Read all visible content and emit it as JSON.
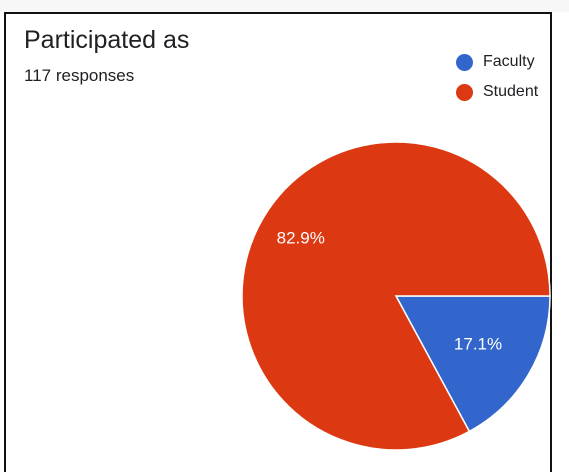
{
  "chart_data": {
    "type": "pie",
    "title": "Participated as",
    "subtitle": "117 responses",
    "legend_position": "top-right",
    "categories": [
      "Faculty",
      "Student"
    ],
    "values": [
      17.1,
      82.9
    ],
    "labels": [
      "17.1%",
      "82.9%"
    ],
    "colors": [
      "#3366CC",
      "#DC3912"
    ]
  }
}
